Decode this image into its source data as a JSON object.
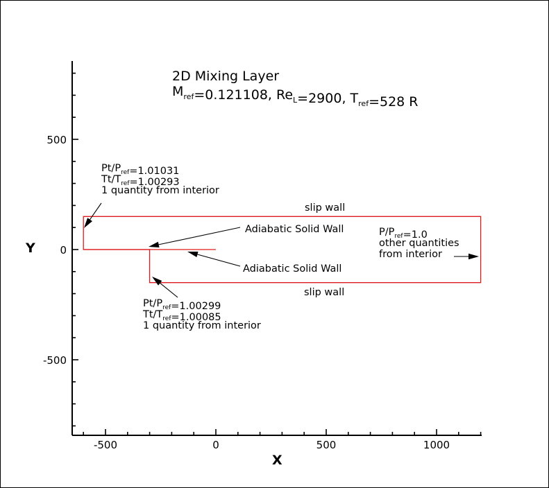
{
  "chart_data": {
    "type": "diagram",
    "title_line1": "2D Mixing Layer",
    "title_line2_parts": [
      {
        "t": "M"
      },
      {
        "t": "ref",
        "sub": true
      },
      {
        "t": "=0.121108, Re"
      },
      {
        "t": "L",
        "sub": true
      },
      {
        "t": "=2900, T"
      },
      {
        "t": "ref",
        "sub": true
      },
      {
        "t": "=528 R"
      }
    ],
    "xlabel": "X",
    "ylabel": "Y",
    "xlim": [
      -650,
      1200
    ],
    "ylim": [
      -840,
      860
    ],
    "x_ticks": [
      -500,
      0,
      500,
      1000
    ],
    "x_tick_labels": [
      "-500",
      "0",
      "500",
      "1000"
    ],
    "y_ticks": [
      -500,
      0,
      500
    ],
    "y_tick_labels": [
      "-500",
      "0",
      "500"
    ],
    "geometry": {
      "domain_box": {
        "x0": -600,
        "x1": 1200,
        "y0": -150,
        "y1": 150
      },
      "upper_inlet_top": 150,
      "lower_inlet_left": -300,
      "splitter_plate": {
        "x0": -600,
        "x1": 0,
        "y": 0
      }
    },
    "annotations": {
      "upper_inlet": {
        "lines": [
          [
            {
              "t": "Pt/P"
            },
            {
              "t": "ref",
              "sub": true
            },
            {
              "t": "=1.01031"
            }
          ],
          [
            {
              "t": "Tt/T"
            },
            {
              "t": "ref",
              "sub": true
            },
            {
              "t": "=1.00293"
            }
          ],
          [
            {
              "t": "1 quantity from interior"
            }
          ]
        ]
      },
      "lower_inlet": {
        "lines": [
          [
            {
              "t": "Pt/P"
            },
            {
              "t": "ref",
              "sub": true
            },
            {
              "t": "=1.00299"
            }
          ],
          [
            {
              "t": "Tt/T"
            },
            {
              "t": "ref",
              "sub": true
            },
            {
              "t": "=1.00085"
            }
          ],
          [
            {
              "t": "1 quantity from interior"
            }
          ]
        ]
      },
      "outlet": {
        "lines": [
          [
            {
              "t": "P/P"
            },
            {
              "t": "ref",
              "sub": true
            },
            {
              "t": "=1.0"
            }
          ],
          [
            {
              "t": "other quantities"
            }
          ],
          [
            {
              "t": "from interior"
            }
          ]
        ]
      },
      "slip_wall_top": "slip wall",
      "slip_wall_bottom": "slip wall",
      "adiabatic_upper": "Adiabatic Solid Wall",
      "adiabatic_lower": "Adiabatic Solid Wall"
    }
  }
}
